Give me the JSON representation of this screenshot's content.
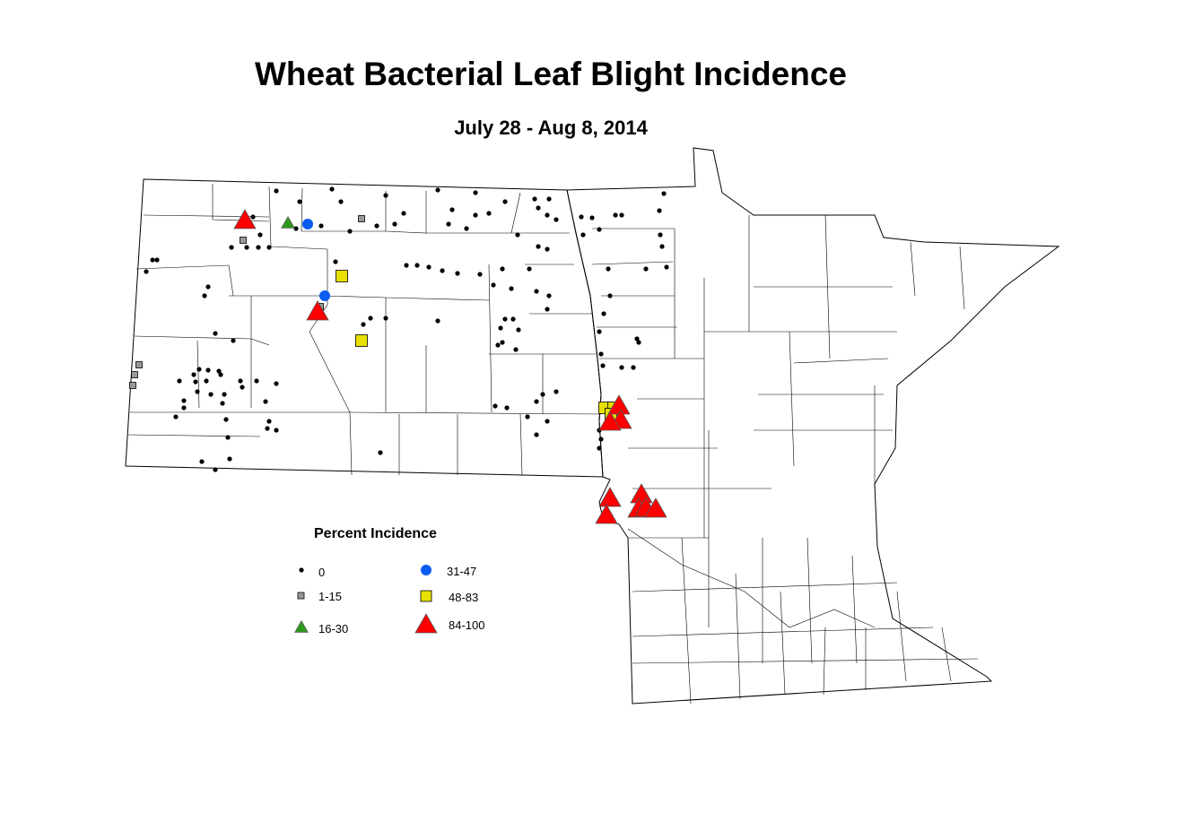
{
  "title": "Wheat Bacterial Leaf Blight Incidence",
  "subtitle": "July 28 - Aug 8, 2014",
  "legend": {
    "title": "Percent Incidence",
    "classes": [
      {
        "label": "0",
        "symbol": "dot",
        "color": "#000000"
      },
      {
        "label": "1-15",
        "symbol": "square",
        "color": "#999999"
      },
      {
        "label": "16-30",
        "symbol": "triangle",
        "color": "#2e9a1c"
      },
      {
        "label": "31-47",
        "symbol": "circle",
        "color": "#0a5cf0"
      },
      {
        "label": "48-83",
        "symbol": "square",
        "color": "#e8e000"
      },
      {
        "label": "84-100",
        "symbol": "triangle",
        "color": "#ff0000"
      }
    ]
  }
}
